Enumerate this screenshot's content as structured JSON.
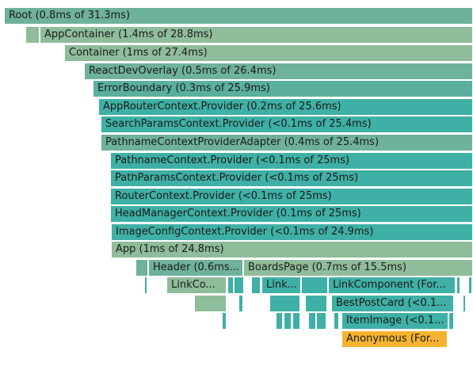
{
  "flamegraph": {
    "colors": {
      "sage": "#8fbc9a",
      "sage_mid": "#6fb29b",
      "teal": "#3fb0a5",
      "teal_soft": "#5aaf9f",
      "selected": "#f5b32f"
    },
    "frames": [
      {
        "label": "Root (0.8ms of 31.3ms)"
      },
      {
        "label": "AppContainer (1.4ms of 28.8ms)"
      },
      {
        "label": "Container (1ms of 27.4ms)"
      },
      {
        "label": "ReactDevOverlay (0.5ms of 26.4ms)"
      },
      {
        "label": "ErrorBoundary (0.3ms of 25.9ms)"
      },
      {
        "label": "AppRouterContext.Provider (0.2ms of 25.6ms)"
      },
      {
        "label": "SearchParamsContext.Provider (<0.1ms of 25.4ms)"
      },
      {
        "label": "PathnameContextProviderAdapter (0.4ms of 25.4ms)"
      },
      {
        "label": "PathnameContext.Provider (<0.1ms of 25ms)"
      },
      {
        "label": "PathParamsContext.Provider (<0.1ms of 25ms)"
      },
      {
        "label": "RouterContext.Provider (<0.1ms of 25ms)"
      },
      {
        "label": "HeadManagerContext.Provider (0.1ms of 25ms)"
      },
      {
        "label": "ImageConfigContext.Provider (<0.1ms of 24.9ms)"
      },
      {
        "label": "App (1ms of 24.8ms)"
      },
      {
        "label": "Header (0.6ms..."
      },
      {
        "label": "BoardsPage (0.7ms of 15.5ms)"
      },
      {
        "label": "LinkCo..."
      },
      {
        "label": "Link..."
      },
      {
        "label": "LinkComponent (For..."
      },
      {
        "label": "BestPostCard (<0.1..."
      },
      {
        "label": "ItemImage (<0.1..."
      },
      {
        "label": "Anonymous (For..."
      }
    ]
  }
}
